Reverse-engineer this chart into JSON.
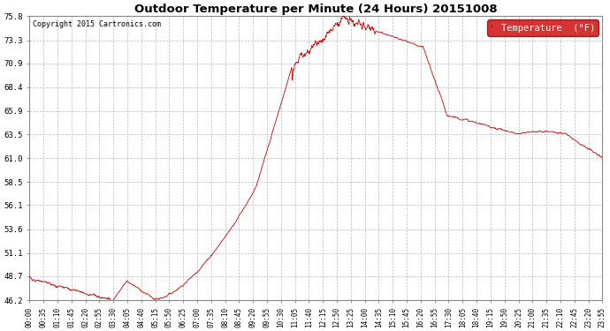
{
  "title": "Outdoor Temperature per Minute (24 Hours) 20151008",
  "copyright_text": "Copyright 2015 Cartronics.com",
  "legend_label": "Temperature  (°F)",
  "line_color": "#cc0000",
  "background_color": "#ffffff",
  "plot_bg_color": "#ffffff",
  "grid_color": "#bbbbbb",
  "legend_bg_color": "#cc0000",
  "legend_text_color": "#ffffff",
  "yticks": [
    46.2,
    48.7,
    51.1,
    53.6,
    56.1,
    58.5,
    61.0,
    63.5,
    65.9,
    68.4,
    70.9,
    73.3,
    75.8
  ],
  "ylim": [
    46.2,
    75.8
  ],
  "xtick_labels": [
    "00:00",
    "00:35",
    "01:10",
    "01:45",
    "02:20",
    "02:55",
    "03:30",
    "04:05",
    "04:40",
    "05:15",
    "05:50",
    "06:25",
    "07:00",
    "07:35",
    "08:10",
    "08:45",
    "09:20",
    "09:55",
    "10:30",
    "11:05",
    "11:40",
    "12:15",
    "12:50",
    "13:25",
    "14:00",
    "14:35",
    "15:10",
    "15:45",
    "16:20",
    "16:55",
    "17:30",
    "18:05",
    "18:40",
    "19:15",
    "19:50",
    "20:25",
    "21:00",
    "21:35",
    "22:10",
    "22:45",
    "23:20",
    "23:55"
  ],
  "num_points": 1440
}
